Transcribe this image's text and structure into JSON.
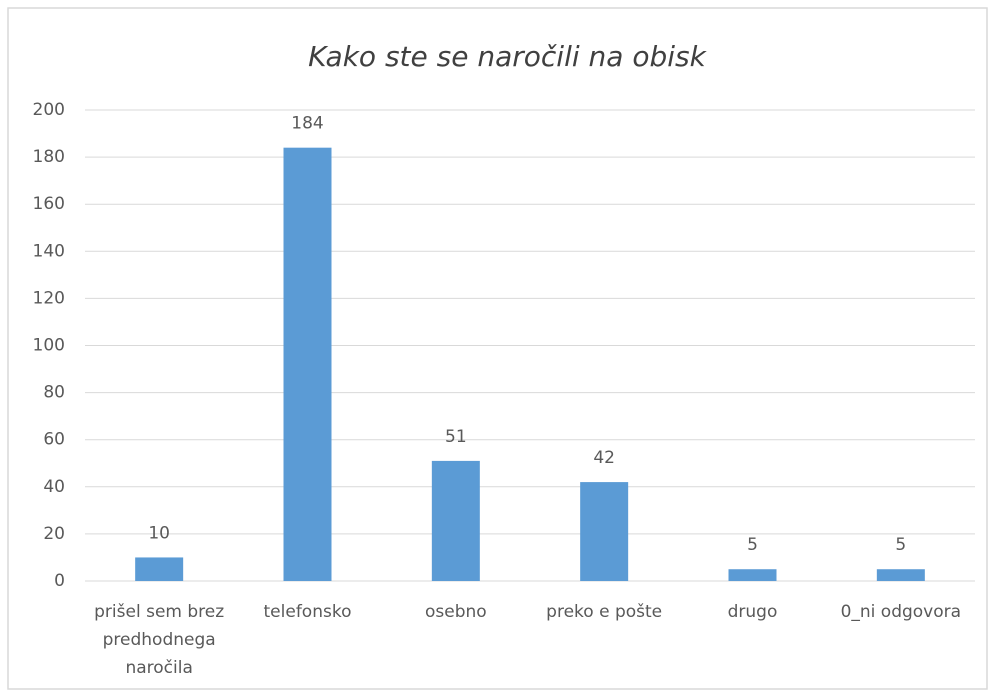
{
  "chart_data": {
    "type": "bar",
    "title": "Kako ste se naročili na obisk",
    "categories": [
      "prišel sem brez predhodnega naročila",
      "telefonsko",
      "osebno",
      "preko e pošte",
      "drugo",
      "0_ni odgovora"
    ],
    "values": [
      10,
      184,
      51,
      42,
      5,
      5
    ],
    "color": "#5b9bd5",
    "ylim": [
      0,
      200
    ],
    "yticks": [
      0,
      20,
      40,
      60,
      80,
      100,
      120,
      140,
      160,
      180,
      200
    ],
    "grid": true
  }
}
